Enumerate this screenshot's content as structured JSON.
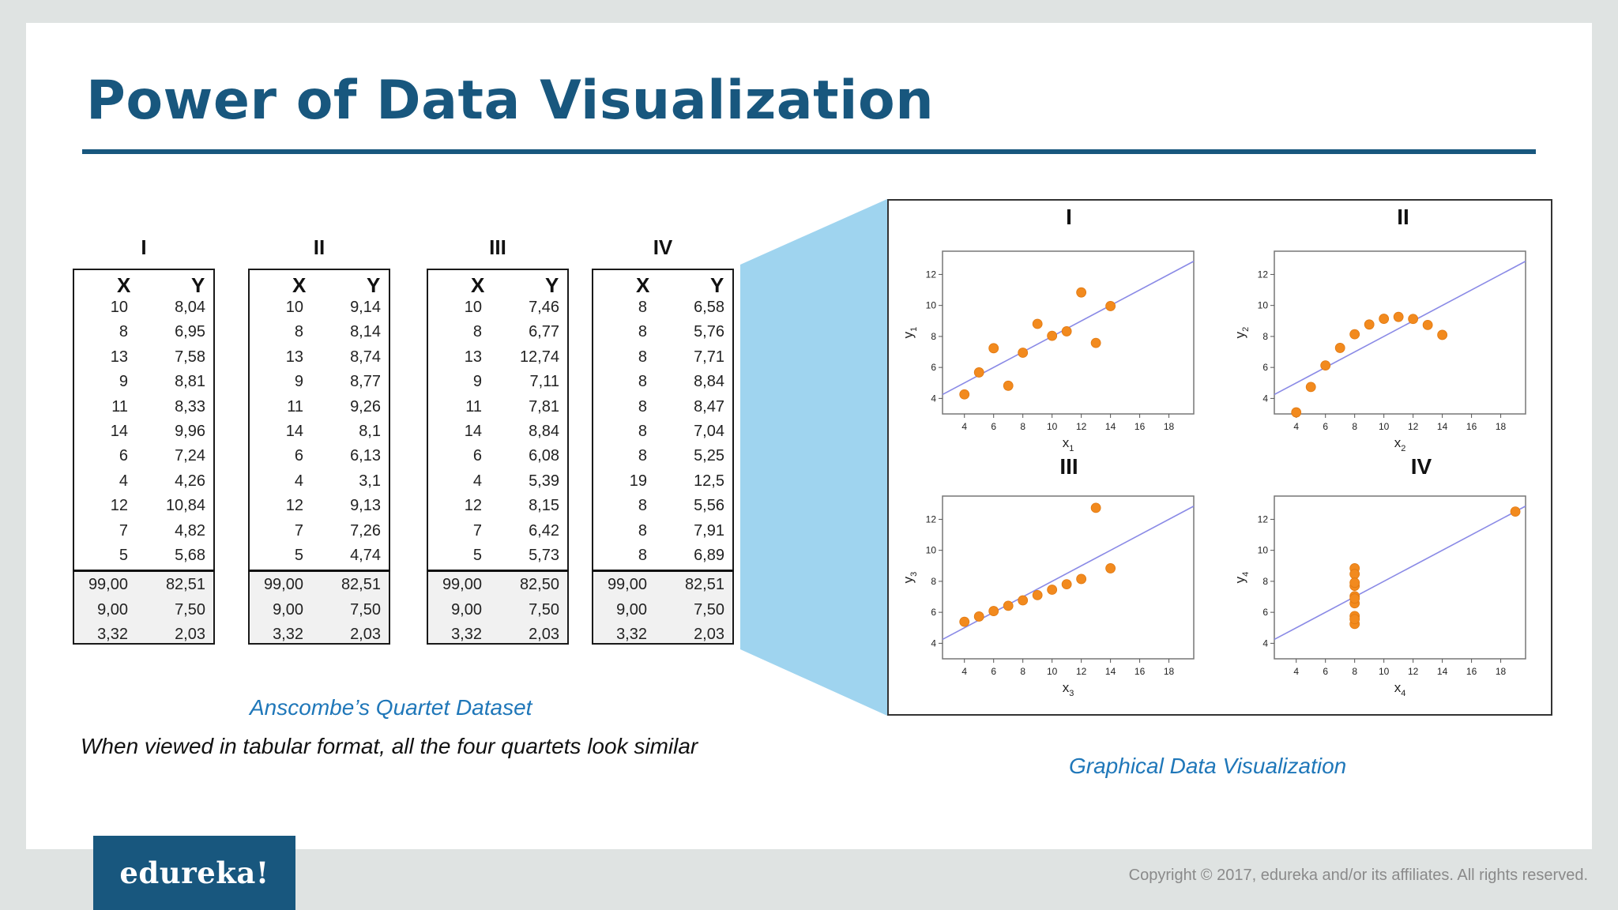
{
  "slide": {
    "title": "Power of Data Visualization",
    "dataset_caption": "Anscombe’s Quartet Dataset",
    "description": "When viewed in tabular format, all the four quartets look similar",
    "viz_caption": "Graphical Data Visualization",
    "logo_text": "edureka!",
    "copyright": "Copyright © 2017, edureka and/or its affiliates. All rights reserved."
  },
  "colors": {
    "brand_blue": "#18577e",
    "caption_blue": "#1f77b9",
    "wedge_blue": "#9fd4ef",
    "point_orange": "#f28a1e",
    "fit_line": "#8a8ae6"
  },
  "tables": [
    {
      "label": "I",
      "col_x": "X",
      "col_y": "Y",
      "rows": [
        [
          "10",
          "8,04"
        ],
        [
          "8",
          "6,95"
        ],
        [
          "13",
          "7,58"
        ],
        [
          "9",
          "8,81"
        ],
        [
          "11",
          "8,33"
        ],
        [
          "14",
          "9,96"
        ],
        [
          "6",
          "7,24"
        ],
        [
          "4",
          "4,26"
        ],
        [
          "12",
          "10,84"
        ],
        [
          "7",
          "4,82"
        ],
        [
          "5",
          "5,68"
        ]
      ],
      "summary": [
        [
          "99,00",
          "82,51"
        ],
        [
          "9,00",
          "7,50"
        ],
        [
          "3,32",
          "2,03"
        ]
      ]
    },
    {
      "label": "II",
      "col_x": "X",
      "col_y": "Y",
      "rows": [
        [
          "10",
          "9,14"
        ],
        [
          "8",
          "8,14"
        ],
        [
          "13",
          "8,74"
        ],
        [
          "9",
          "8,77"
        ],
        [
          "11",
          "9,26"
        ],
        [
          "14",
          "8,1"
        ],
        [
          "6",
          "6,13"
        ],
        [
          "4",
          "3,1"
        ],
        [
          "12",
          "9,13"
        ],
        [
          "7",
          "7,26"
        ],
        [
          "5",
          "4,74"
        ]
      ],
      "summary": [
        [
          "99,00",
          "82,51"
        ],
        [
          "9,00",
          "7,50"
        ],
        [
          "3,32",
          "2,03"
        ]
      ]
    },
    {
      "label": "III",
      "col_x": "X",
      "col_y": "Y",
      "rows": [
        [
          "10",
          "7,46"
        ],
        [
          "8",
          "6,77"
        ],
        [
          "13",
          "12,74"
        ],
        [
          "9",
          "7,11"
        ],
        [
          "11",
          "7,81"
        ],
        [
          "14",
          "8,84"
        ],
        [
          "6",
          "6,08"
        ],
        [
          "4",
          "5,39"
        ],
        [
          "12",
          "8,15"
        ],
        [
          "7",
          "6,42"
        ],
        [
          "5",
          "5,73"
        ]
      ],
      "summary": [
        [
          "99,00",
          "82,50"
        ],
        [
          "9,00",
          "7,50"
        ],
        [
          "3,32",
          "2,03"
        ]
      ]
    },
    {
      "label": "IV",
      "col_x": "X",
      "col_y": "Y",
      "rows": [
        [
          "8",
          "6,58"
        ],
        [
          "8",
          "5,76"
        ],
        [
          "8",
          "7,71"
        ],
        [
          "8",
          "8,84"
        ],
        [
          "8",
          "8,47"
        ],
        [
          "8",
          "7,04"
        ],
        [
          "8",
          "5,25"
        ],
        [
          "19",
          "12,5"
        ],
        [
          "8",
          "5,56"
        ],
        [
          "8",
          "7,91"
        ],
        [
          "8",
          "6,89"
        ]
      ],
      "summary": [
        [
          "99,00",
          "82,51"
        ],
        [
          "9,00",
          "7,50"
        ],
        [
          "3,32",
          "2,03"
        ]
      ]
    }
  ],
  "chart_data": [
    {
      "type": "scatter",
      "title": "I",
      "xlabel": "x1",
      "ylabel": "y1",
      "xticks": [
        4,
        6,
        8,
        10,
        12,
        14,
        16,
        18
      ],
      "yticks": [
        4,
        6,
        8,
        10,
        12
      ],
      "xlim": [
        2.5,
        19.7
      ],
      "ylim": [
        3,
        13.5
      ],
      "x": [
        10,
        8,
        13,
        9,
        11,
        14,
        6,
        4,
        12,
        7,
        5
      ],
      "y": [
        8.04,
        6.95,
        7.58,
        8.81,
        8.33,
        9.96,
        7.24,
        4.26,
        10.84,
        4.82,
        5.68
      ],
      "fit": {
        "intercept": 3,
        "slope": 0.5
      }
    },
    {
      "type": "scatter",
      "title": "II",
      "xlabel": "x2",
      "ylabel": "y2",
      "xticks": [
        4,
        6,
        8,
        10,
        12,
        14,
        16,
        18
      ],
      "yticks": [
        4,
        6,
        8,
        10,
        12
      ],
      "xlim": [
        2.5,
        19.7
      ],
      "ylim": [
        3,
        13.5
      ],
      "x": [
        10,
        8,
        13,
        9,
        11,
        14,
        6,
        4,
        12,
        7,
        5
      ],
      "y": [
        9.14,
        8.14,
        8.74,
        8.77,
        9.26,
        8.1,
        6.13,
        3.1,
        9.13,
        7.26,
        4.74
      ],
      "fit": {
        "intercept": 3,
        "slope": 0.5
      }
    },
    {
      "type": "scatter",
      "title": "III",
      "xlabel": "x3",
      "ylabel": "y3",
      "xticks": [
        4,
        6,
        8,
        10,
        12,
        14,
        16,
        18
      ],
      "yticks": [
        4,
        6,
        8,
        10,
        12
      ],
      "xlim": [
        2.5,
        19.7
      ],
      "ylim": [
        3,
        13.5
      ],
      "x": [
        10,
        8,
        13,
        9,
        11,
        14,
        6,
        4,
        12,
        7,
        5
      ],
      "y": [
        7.46,
        6.77,
        12.74,
        7.11,
        7.81,
        8.84,
        6.08,
        5.39,
        8.15,
        6.42,
        5.73
      ],
      "fit": {
        "intercept": 3,
        "slope": 0.5
      }
    },
    {
      "type": "scatter",
      "title": "IV",
      "xlabel": "x4",
      "ylabel": "y4",
      "xticks": [
        4,
        6,
        8,
        10,
        12,
        14,
        16,
        18
      ],
      "yticks": [
        4,
        6,
        8,
        10,
        12
      ],
      "xlim": [
        2.5,
        19.7
      ],
      "ylim": [
        3,
        13.5
      ],
      "x": [
        8,
        8,
        8,
        8,
        8,
        8,
        8,
        19,
        8,
        8,
        8
      ],
      "y": [
        6.58,
        5.76,
        7.71,
        8.84,
        8.47,
        7.04,
        5.25,
        12.5,
        5.56,
        7.91,
        6.89
      ],
      "fit": {
        "intercept": 3,
        "slope": 0.5
      }
    }
  ]
}
